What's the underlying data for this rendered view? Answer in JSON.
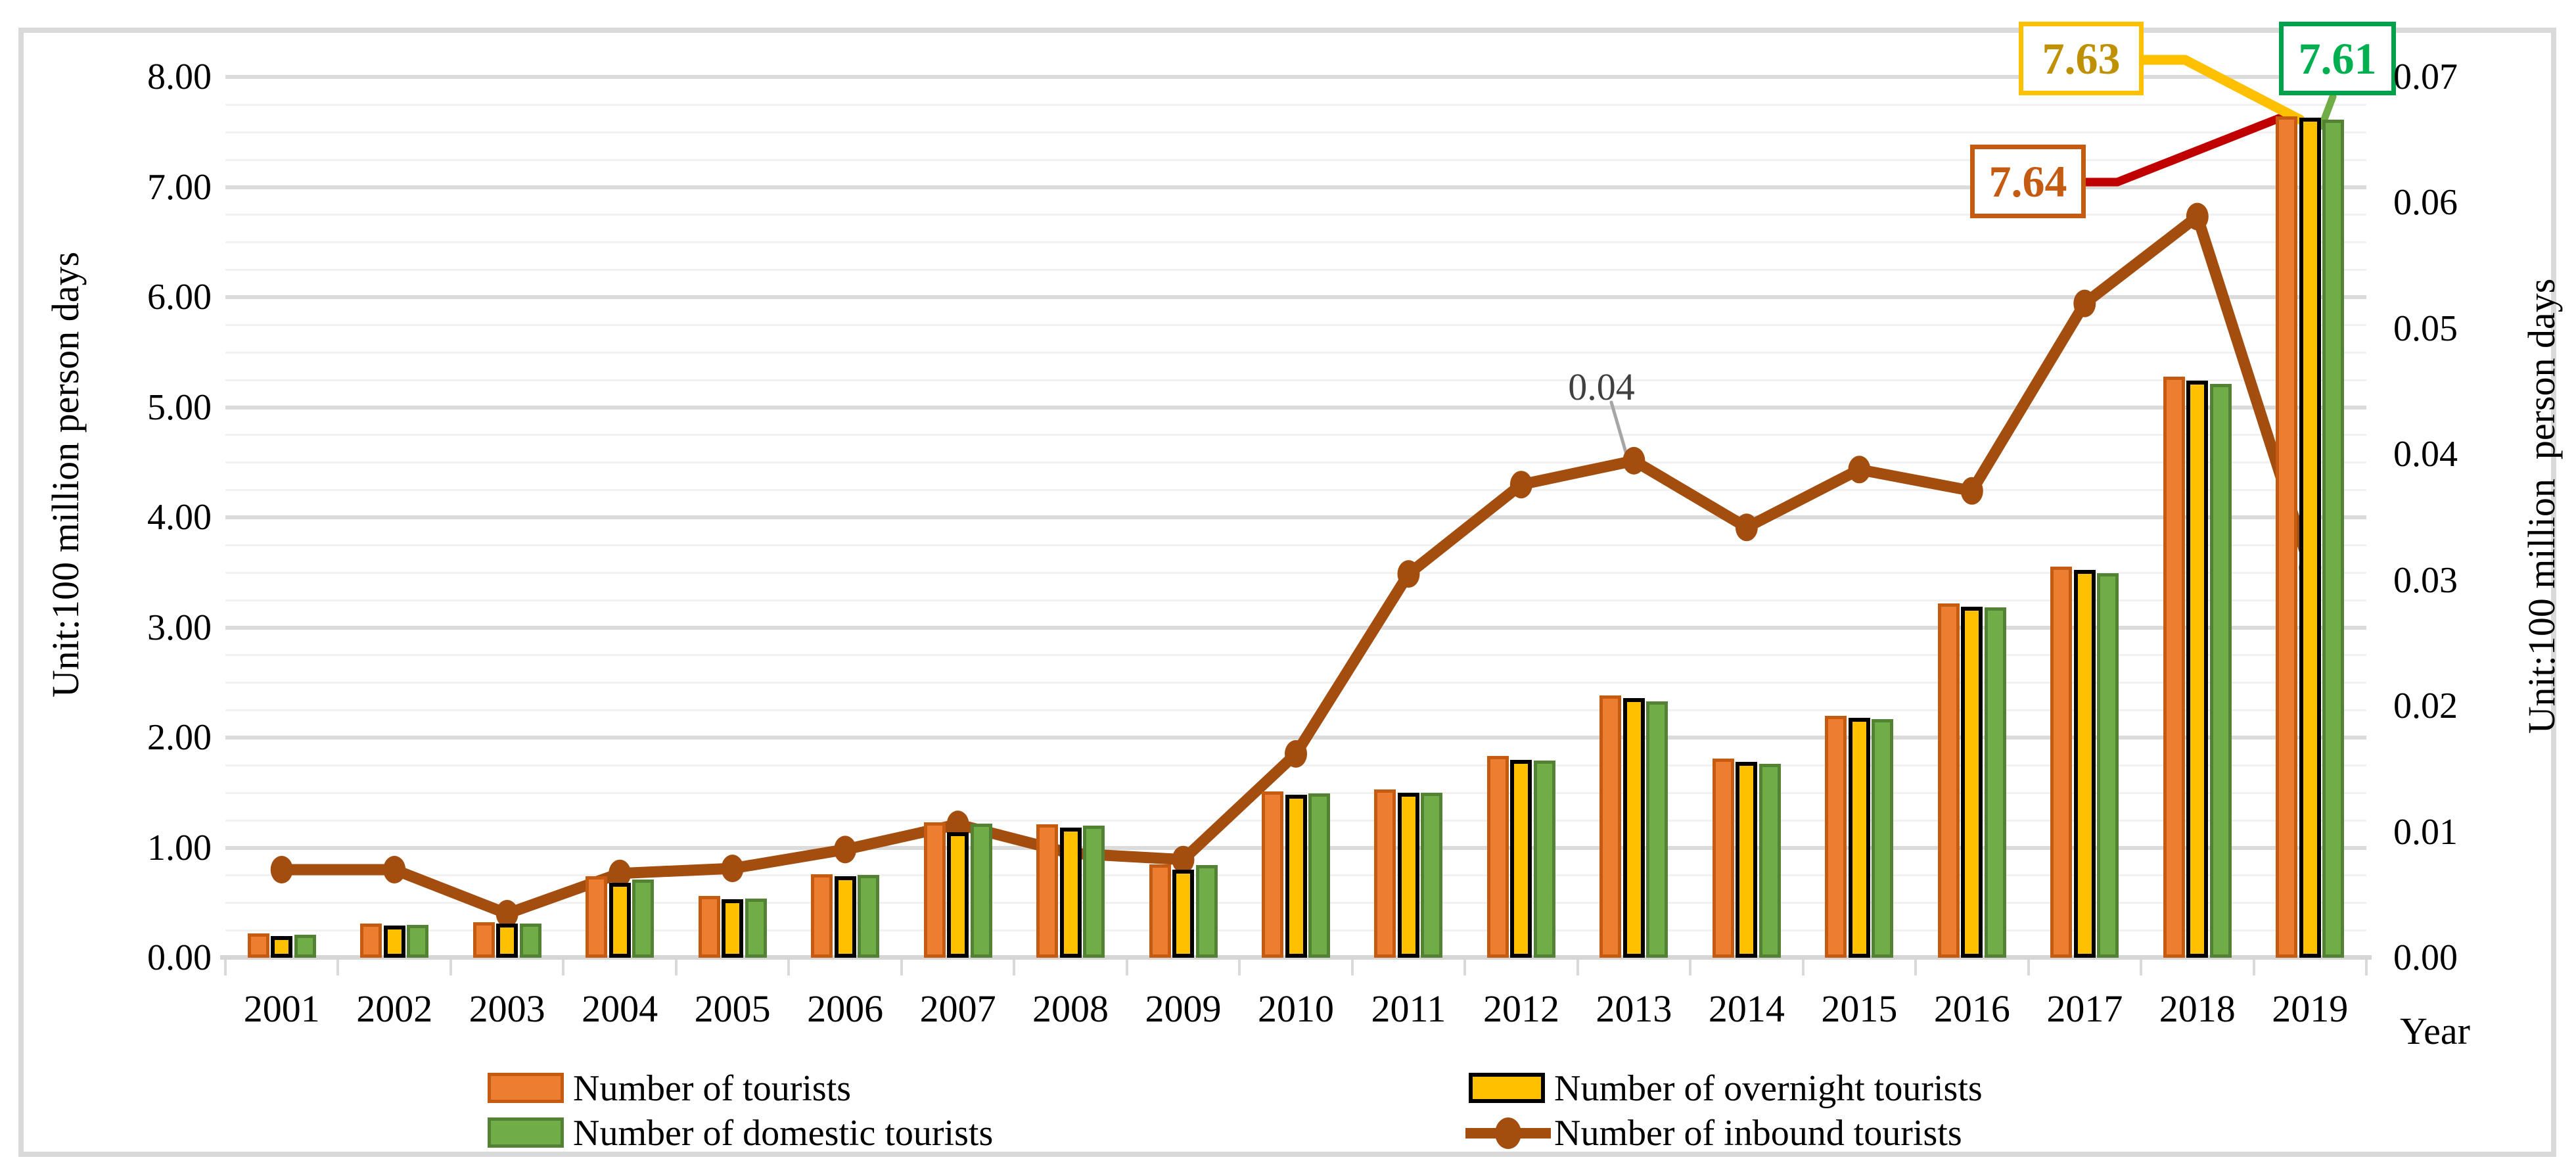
{
  "chart_data": {
    "type": "bar+line combo",
    "categories": [
      "2001",
      "2002",
      "2003",
      "2004",
      "2005",
      "2006",
      "2007",
      "2008",
      "2009",
      "2010",
      "2011",
      "2012",
      "2013",
      "2014",
      "2015",
      "2016",
      "2017",
      "2018",
      "2019"
    ],
    "series": [
      {
        "name": "Number of tourists",
        "type": "bar",
        "axis": "left",
        "color": "#ED7D31",
        "border_color": "#C55A11",
        "values": [
          0.22,
          0.31,
          0.32,
          0.74,
          0.56,
          0.76,
          1.23,
          1.21,
          0.85,
          1.51,
          1.53,
          1.83,
          2.38,
          1.81,
          2.2,
          3.22,
          3.55,
          5.28,
          7.64
        ]
      },
      {
        "name": "Number of overnight tourists",
        "type": "bar",
        "axis": "left",
        "color": "#FFC000",
        "border_color": "#000000",
        "values": [
          0.2,
          0.29,
          0.31,
          0.68,
          0.53,
          0.74,
          1.14,
          1.18,
          0.8,
          1.48,
          1.5,
          1.8,
          2.36,
          1.78,
          2.18,
          3.19,
          3.52,
          5.24,
          7.63
        ]
      },
      {
        "name": "Number of domestic tourists",
        "type": "bar",
        "axis": "left",
        "color": "#70AD47",
        "border_color": "#548235",
        "values": [
          0.21,
          0.3,
          0.31,
          0.71,
          0.54,
          0.75,
          1.22,
          1.2,
          0.84,
          1.49,
          1.5,
          1.79,
          2.33,
          1.76,
          2.17,
          3.18,
          3.49,
          5.21,
          7.61
        ]
      },
      {
        "name": "Number of inbound tourists",
        "type": "line",
        "axis": "right",
        "color": "#A34D0F",
        "values": [
          0.007,
          0.007,
          0.0035,
          0.0067,
          0.0071,
          0.0086,
          0.0106,
          0.0083,
          0.0078,
          0.0162,
          0.0305,
          0.0376,
          0.0395,
          0.0342,
          0.0388,
          0.0371,
          0.052,
          0.0589,
          0.031
        ]
      }
    ],
    "left_axis": {
      "title": "Unit:100 million person days",
      "min": 0,
      "max": 8,
      "major_unit": 1,
      "minor_unit": 0.25,
      "tick_labels": [
        "0.00",
        "1.00",
        "2.00",
        "3.00",
        "4.00",
        "5.00",
        "6.00",
        "7.00",
        "8.00"
      ]
    },
    "right_axis": {
      "title": "Unit:100 million  person days",
      "min": 0,
      "max": 0.07,
      "major_unit": 0.01,
      "tick_labels": [
        "0.00",
        "0.01",
        "0.02",
        "0.03",
        "0.04",
        "0.05",
        "0.06",
        "0.07"
      ]
    },
    "x_axis": {
      "title": "Year",
      "grid": false
    },
    "grid": "horizontal major + minor",
    "legend_position": "bottom, two columns",
    "annotations": [
      {
        "text": "7.63",
        "year": "2019",
        "series": "Number of overnight tourists",
        "text_color": "#BF9000",
        "border_color": "#FFC000",
        "leader_color": "#FFC000"
      },
      {
        "text": "7.61",
        "year": "2019",
        "series": "Number of domestic tourists",
        "text_color": "#00B050",
        "border_color": "#00A14B",
        "leader_color": "#70AD47"
      },
      {
        "text": "7.64",
        "year": "2019",
        "series": "Number of tourists",
        "text_color": "#C55A11",
        "border_color": "#C55A11",
        "leader_color": "#C00000"
      },
      {
        "text": "0.04",
        "year": "2013",
        "series": "Number of inbound tourists",
        "text_color": "#404040",
        "leader_color": "#A6A6A6"
      }
    ],
    "legend": {
      "items": [
        {
          "label": "Number of tourists",
          "swatch": "orange-bar"
        },
        {
          "label": "Number of domestic tourists",
          "swatch": "green-bar"
        },
        {
          "label": "Number of overnight tourists",
          "swatch": "yellow-bar"
        },
        {
          "label": "Number of inbound tourists",
          "swatch": "brown-line-marker"
        }
      ]
    }
  }
}
